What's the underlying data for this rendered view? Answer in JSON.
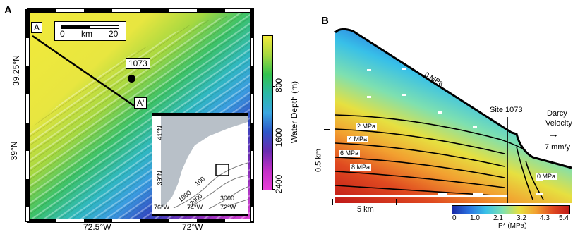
{
  "panel_a": {
    "label": "A",
    "scale_bar": {
      "start": "0",
      "unit": "km",
      "end": "20"
    },
    "profile_start": "A",
    "profile_end": "A'",
    "site": "1073",
    "lat_ticks": [
      "39.25°N",
      "39°N"
    ],
    "lon_ticks": [
      "72.5°W",
      "72°W"
    ],
    "depth_colorbar": {
      "title": "Water Depth (m)",
      "ticks": [
        "800",
        "1600",
        "2400"
      ],
      "colors": [
        "#f2ea3a",
        "#a5d840",
        "#33c24e",
        "#2bb8a6",
        "#3aa6e0",
        "#2e56c8",
        "#6a2bb0",
        "#c22ec6",
        "#e83fd8"
      ]
    },
    "inset": {
      "lat_ticks": [
        "41°N",
        "39°N"
      ],
      "lon_ticks": [
        "76°W",
        "74°W",
        "72°W"
      ],
      "contours": [
        "100",
        "1000",
        "2000",
        "3000"
      ]
    }
  },
  "panel_b": {
    "label": "B",
    "site_label": "Site 1073",
    "surface_label": "0 MPa",
    "contour_labels": [
      "2 MPa",
      "4 MPa",
      "6 MPa",
      "8 MPa"
    ],
    "slope_label": "0 MPa",
    "vertical_scale": "0.5 km",
    "horizontal_scale": "5 km",
    "darcy_legend": {
      "line1": "Darcy",
      "line2": "Velocity",
      "value": "7 mm/y"
    },
    "pressure_colorbar": {
      "title": "P* (MPa)",
      "ticks": [
        "0",
        "1.0",
        "2.1",
        "3.2",
        "4.3",
        "5.4"
      ],
      "colors": [
        "#1a2aa8",
        "#2a72e0",
        "#38c0e8",
        "#7ee0b0",
        "#e6e040",
        "#f2a030",
        "#e04a20",
        "#c01818"
      ]
    }
  }
}
